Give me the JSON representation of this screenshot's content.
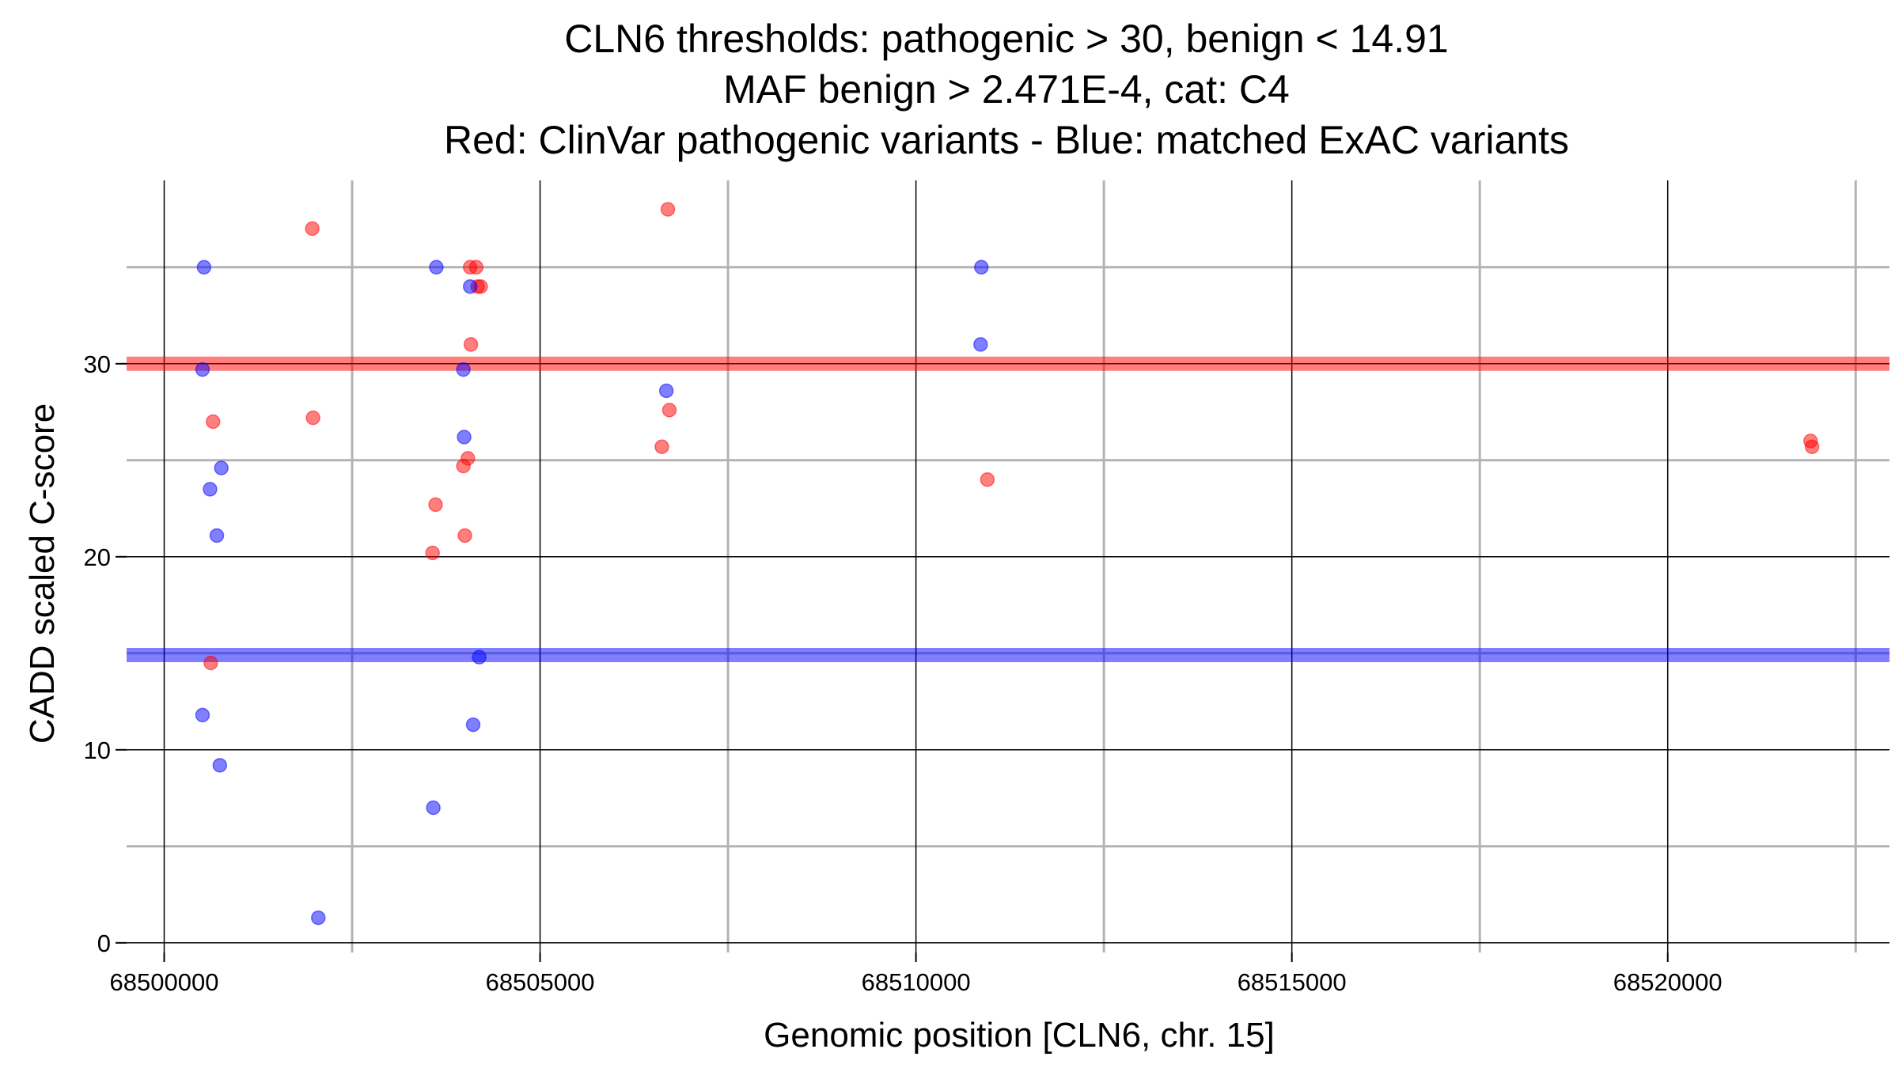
{
  "chart_data": {
    "type": "scatter",
    "title_lines": [
      "CLN6 thresholds: pathogenic > 30, benign < 14.91",
      "MAF benign > 2.471E-4, cat: C4",
      "Red: ClinVar pathogenic variants - Blue: matched ExAC variants"
    ],
    "xlabel": "Genomic position [CLN6, chr. 15]",
    "ylabel": "CADD scaled C-score",
    "xlim": [
      68499500,
      68522950
    ],
    "ylim": [
      -0.5,
      39.5
    ],
    "x_ticks": [
      68500000,
      68505000,
      68510000,
      68515000,
      68520000
    ],
    "x_tick_labels": [
      "68500000",
      "68505000",
      "68510000",
      "68515000",
      "68520000"
    ],
    "x_minor_gridlines": [
      68502500,
      68507500,
      68512500,
      68517500,
      68522500
    ],
    "y_ticks": [
      0,
      10,
      20,
      30
    ],
    "y_tick_labels": [
      "0",
      "10",
      "20",
      "30"
    ],
    "y_minor_gridlines": [
      5,
      15,
      25,
      35
    ],
    "grid": true,
    "thresholds": [
      {
        "label": "pathogenic",
        "value": 30,
        "color": "#ff0000"
      },
      {
        "label": "benign",
        "value": 14.91,
        "color": "#0000ff"
      }
    ],
    "series": [
      {
        "color": "#ff0000",
        "points": [
          [
            68501970,
            37.0
          ],
          [
            68500650,
            27.0
          ],
          [
            68501980,
            27.2
          ],
          [
            68500620,
            14.5
          ],
          [
            68503610,
            22.7
          ],
          [
            68503570,
            20.2
          ],
          [
            68503980,
            24.7
          ],
          [
            68504040,
            25.1
          ],
          [
            68504000,
            21.1
          ],
          [
            68504080,
            31.0
          ],
          [
            68504070,
            35.0
          ],
          [
            68504150,
            35.0
          ],
          [
            68504170,
            34.0
          ],
          [
            68504210,
            34.0
          ],
          [
            68506700,
            38.0
          ],
          [
            68506620,
            25.7
          ],
          [
            68506720,
            27.6
          ],
          [
            68510950,
            24.0
          ],
          [
            68521900,
            26.0
          ],
          [
            68521920,
            25.7
          ]
        ]
      },
      {
        "color": "#0000ff",
        "points": [
          [
            68500530,
            35.0
          ],
          [
            68500510,
            29.7
          ],
          [
            68500760,
            24.6
          ],
          [
            68500610,
            23.5
          ],
          [
            68500700,
            21.1
          ],
          [
            68500510,
            11.8
          ],
          [
            68500740,
            9.2
          ],
          [
            68502050,
            1.3
          ],
          [
            68503620,
            35.0
          ],
          [
            68504070,
            34.0
          ],
          [
            68503980,
            29.7
          ],
          [
            68503990,
            26.2
          ],
          [
            68504190,
            14.8
          ],
          [
            68504110,
            11.3
          ],
          [
            68503580,
            7.0
          ],
          [
            68506680,
            28.6
          ],
          [
            68510870,
            35.0
          ],
          [
            68510860,
            31.0
          ]
        ]
      }
    ]
  }
}
